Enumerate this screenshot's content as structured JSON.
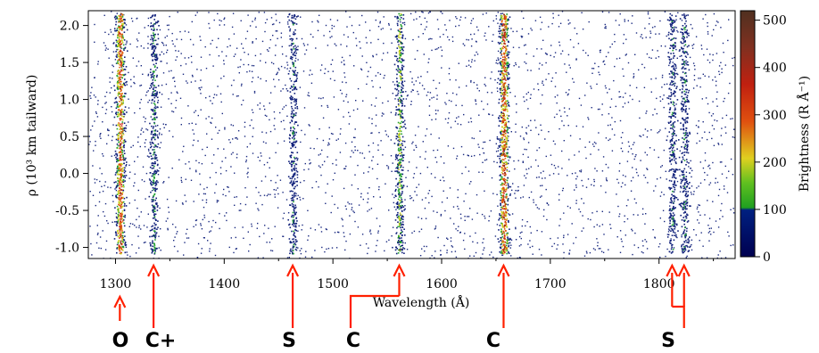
{
  "chart_data": {
    "type": "heatmap",
    "title": "",
    "xlabel": "Wavelength (Å)",
    "ylabel": "ρ (10³ km tailward)",
    "xlim": [
      1275,
      1870
    ],
    "ylim": [
      -1.15,
      2.2
    ],
    "x_ticks": [
      1300,
      1400,
      1500,
      1600,
      1700,
      1800
    ],
    "y_ticks": [
      -1.0,
      -0.5,
      0.0,
      0.5,
      1.0,
      1.5,
      2.0
    ],
    "colorbar": {
      "label": "Brightness (R Å⁻¹)",
      "range": [
        0,
        520
      ],
      "ticks": [
        0,
        100,
        200,
        300,
        400,
        500
      ],
      "colors": [
        "#000060",
        "#1030a0",
        "#20a020",
        "#e0d020",
        "#e04010",
        "#903010",
        "#603020"
      ]
    },
    "emission_bands": [
      {
        "wavelength": 1304,
        "peak": 400
      },
      {
        "wavelength": 1335,
        "peak": 130
      },
      {
        "wavelength": 1463,
        "peak": 110
      },
      {
        "wavelength": 1561,
        "peak": 200
      },
      {
        "wavelength": 1657,
        "peak": 420
      },
      {
        "wavelength": 1812,
        "peak": 110
      },
      {
        "wavelength": 1823,
        "peak": 120
      }
    ],
    "line_annotations": [
      {
        "label": "O",
        "wavelength": 1304
      },
      {
        "label": "C+",
        "wavelength": 1335
      },
      {
        "label": "S",
        "wavelength": 1463
      },
      {
        "label": "C",
        "wavelength": 1561
      },
      {
        "label": "C",
        "wavelength": 1657
      },
      {
        "label": "S",
        "wavelength": 1812
      },
      {
        "label": "S",
        "wavelength": 1823
      }
    ],
    "annotation_color": "#ff2000"
  }
}
